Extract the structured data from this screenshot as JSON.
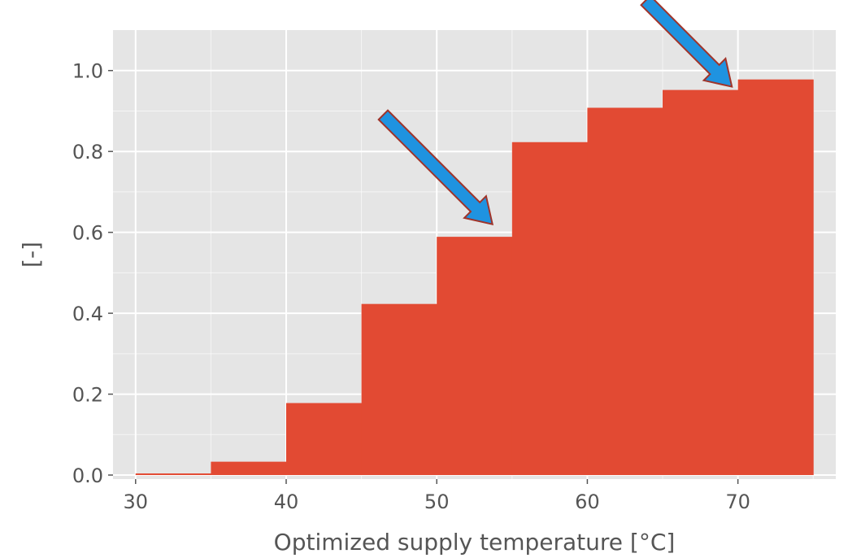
{
  "chart_data": {
    "type": "bar",
    "style": "cumulative histogram (step bars)",
    "xlabel": "Optimized supply temperature [°C]",
    "ylabel": "[-]",
    "bin_edges": [
      30,
      35,
      40,
      45,
      50,
      55,
      60,
      65,
      70,
      75
    ],
    "values": [
      0.004,
      0.033,
      0.178,
      0.423,
      0.589,
      0.823,
      0.908,
      0.952,
      0.978
    ],
    "xlim": [
      28.5,
      76.5
    ],
    "ylim": [
      -0.01,
      1.1
    ],
    "x_ticks": [
      30,
      40,
      50,
      60,
      70
    ],
    "x_tick_labels": [
      "30",
      "40",
      "50",
      "60",
      "70"
    ],
    "y_ticks": [
      0.0,
      0.2,
      0.4,
      0.6,
      0.8,
      1.0
    ],
    "y_tick_labels": [
      "0.0",
      "0.2",
      "0.4",
      "0.6",
      "0.8",
      "1.0"
    ],
    "grid": true,
    "colors": {
      "bar": "#E24A33",
      "plot_background": "#E5E5E5",
      "grid": "#FFFFFF",
      "text": "#555555",
      "arrow_fill": "#1F93E0",
      "arrow_stroke": "#A0342A"
    },
    "annotations": [
      {
        "type": "arrow",
        "points_to": {
          "x": 53.7,
          "y": 0.62
        }
      },
      {
        "type": "arrow",
        "points_to": {
          "x": 69.6,
          "y": 0.96
        }
      }
    ]
  }
}
